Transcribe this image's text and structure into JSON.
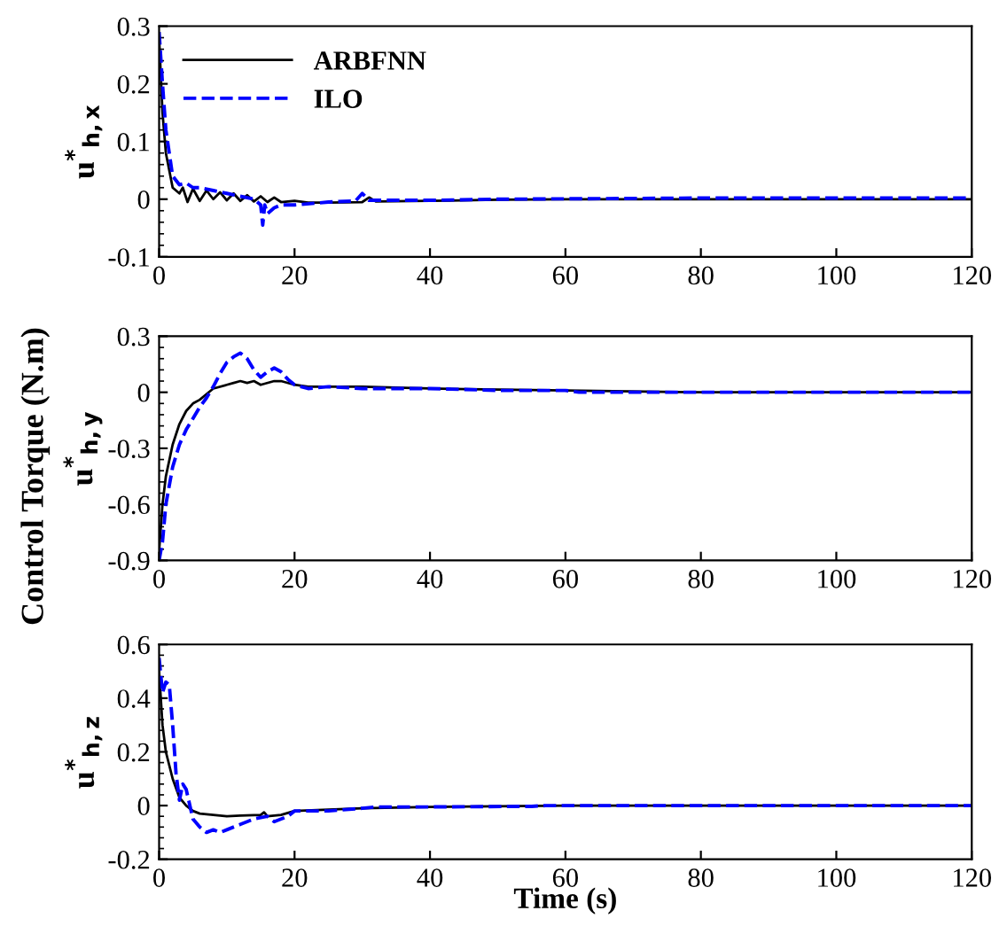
{
  "chart_data": [
    {
      "type": "line",
      "ylabel": "u$^{*}$$_{h,x}$",
      "xlim": [
        0,
        120
      ],
      "xticks": [
        0,
        20,
        40,
        60,
        80,
        100,
        120
      ],
      "ylim": [
        -0.1,
        0.3
      ],
      "yticks": [
        -0.1,
        0,
        0.1,
        0.2,
        0.3
      ],
      "legend": "top left",
      "grid": false,
      "series": [
        {
          "name": "ARBFNN",
          "color": "#000000",
          "line_style": "solid",
          "x": [
            0,
            0.5,
            1,
            2,
            3,
            3.5,
            4.2,
            5,
            6,
            7,
            8,
            9,
            10,
            11,
            12,
            13,
            14,
            15,
            16,
            17,
            18,
            20,
            22,
            25,
            30,
            31,
            32,
            40,
            50,
            60,
            120
          ],
          "values": [
            0.28,
            0.15,
            0.08,
            0.02,
            0.01,
            0.02,
            -0.005,
            0.018,
            -0.003,
            0.015,
            0,
            0.012,
            -0.002,
            0.01,
            -0.003,
            0.007,
            -0.004,
            0.005,
            -0.005,
            0.003,
            -0.005,
            -0.003,
            -0.006,
            -0.006,
            -0.005,
            0.003,
            -0.004,
            -0.003,
            -0.001,
            0,
            0
          ]
        },
        {
          "name": "ILO",
          "color": "#0000ff",
          "line_style": "dashed",
          "x": [
            0,
            0.5,
            1,
            2,
            3,
            4,
            5,
            6,
            8,
            10,
            12,
            14,
            15,
            15.3,
            15.6,
            16,
            17,
            18,
            20,
            25,
            29,
            30,
            31,
            40,
            50,
            80,
            100,
            120
          ],
          "values": [
            0.29,
            0.2,
            0.12,
            0.04,
            0.025,
            0.028,
            0.02,
            0.02,
            0.015,
            0.01,
            0.005,
            0,
            -0.01,
            -0.045,
            -0.01,
            -0.025,
            -0.015,
            -0.01,
            -0.01,
            -0.005,
            -0.003,
            0.01,
            -0.002,
            -0.002,
            0,
            0.002,
            0.002,
            0.002
          ]
        }
      ]
    },
    {
      "type": "line",
      "ylabel": "u$^{*}$$_{h,y}$",
      "annotations": [
        "Control Torque (N.m)"
      ],
      "xlim": [
        0,
        120
      ],
      "xticks": [
        0,
        20,
        40,
        60,
        80,
        100,
        120
      ],
      "ylim": [
        -0.9,
        0.3
      ],
      "yticks": [
        -0.9,
        -0.6,
        -0.3,
        0,
        0.3
      ],
      "grid": false,
      "series": [
        {
          "color": "#000000",
          "line_style": "solid",
          "x": [
            0,
            0.5,
            1,
            2,
            3,
            4,
            5,
            6,
            7,
            8,
            10,
            11,
            12,
            13,
            14,
            15,
            17,
            18,
            20,
            22,
            30,
            40,
            60,
            80,
            120
          ],
          "values": [
            -0.85,
            -0.6,
            -0.45,
            -0.28,
            -0.17,
            -0.1,
            -0.06,
            -0.04,
            -0.01,
            0.02,
            0.04,
            0.05,
            0.06,
            0.05,
            0.06,
            0.04,
            0.06,
            0.06,
            0.04,
            0.03,
            0.03,
            0.02,
            0.01,
            0,
            0
          ]
        },
        {
          "color": "#0000ff",
          "line_style": "dashed",
          "x": [
            0,
            0.5,
            1,
            2,
            3,
            4,
            5,
            6,
            7,
            8,
            9,
            10,
            11,
            12,
            13,
            14,
            15,
            16,
            17,
            18,
            19,
            20,
            22,
            25,
            30,
            40,
            50,
            60,
            62,
            120
          ],
          "values": [
            -0.9,
            -0.8,
            -0.6,
            -0.4,
            -0.28,
            -0.2,
            -0.14,
            -0.08,
            -0.03,
            0.03,
            0.1,
            0.16,
            0.19,
            0.21,
            0.18,
            0.12,
            0.08,
            0.11,
            0.13,
            0.11,
            0.07,
            0.04,
            0.02,
            0.03,
            0.02,
            0.02,
            0.01,
            0.01,
            0,
            0
          ]
        }
      ]
    },
    {
      "type": "line",
      "ylabel": "u$^{*}$$_{h,z}$",
      "xlabel": "Time (s)",
      "xlim": [
        0,
        120
      ],
      "xticks": [
        0,
        20,
        40,
        60,
        80,
        100,
        120
      ],
      "ylim": [
        -0.2,
        0.6
      ],
      "yticks": [
        -0.2,
        0,
        0.2,
        0.4,
        0.6
      ],
      "grid": false,
      "series": [
        {
          "color": "#000000",
          "line_style": "solid",
          "x": [
            0,
            0.5,
            1,
            2,
            3,
            4,
            5,
            6,
            8,
            10,
            12,
            15,
            15.5,
            16,
            18,
            20,
            25,
            30,
            40,
            60,
            120
          ],
          "values": [
            0.5,
            0.3,
            0.2,
            0.1,
            0.03,
            0,
            -0.02,
            -0.03,
            -0.035,
            -0.04,
            -0.037,
            -0.035,
            -0.025,
            -0.04,
            -0.035,
            -0.02,
            -0.015,
            -0.01,
            -0.005,
            0,
            0
          ]
        },
        {
          "color": "#0000ff",
          "line_style": "dashed",
          "x": [
            0,
            0.5,
            1,
            1.5,
            2,
            2.5,
            3,
            3.5,
            4,
            5,
            6,
            7,
            8,
            9,
            10,
            12,
            14,
            16,
            17,
            18,
            19,
            20,
            25,
            30,
            32,
            40,
            55,
            57,
            120
          ],
          "values": [
            0.55,
            0.42,
            0.46,
            0.45,
            0.3,
            0.12,
            0.02,
            0.08,
            0.06,
            -0.05,
            -0.08,
            -0.1,
            -0.09,
            -0.1,
            -0.09,
            -0.07,
            -0.05,
            -0.04,
            -0.06,
            -0.05,
            -0.04,
            -0.02,
            -0.02,
            -0.01,
            -0.005,
            -0.005,
            -0.003,
            0,
            0
          ]
        }
      ]
    }
  ]
}
